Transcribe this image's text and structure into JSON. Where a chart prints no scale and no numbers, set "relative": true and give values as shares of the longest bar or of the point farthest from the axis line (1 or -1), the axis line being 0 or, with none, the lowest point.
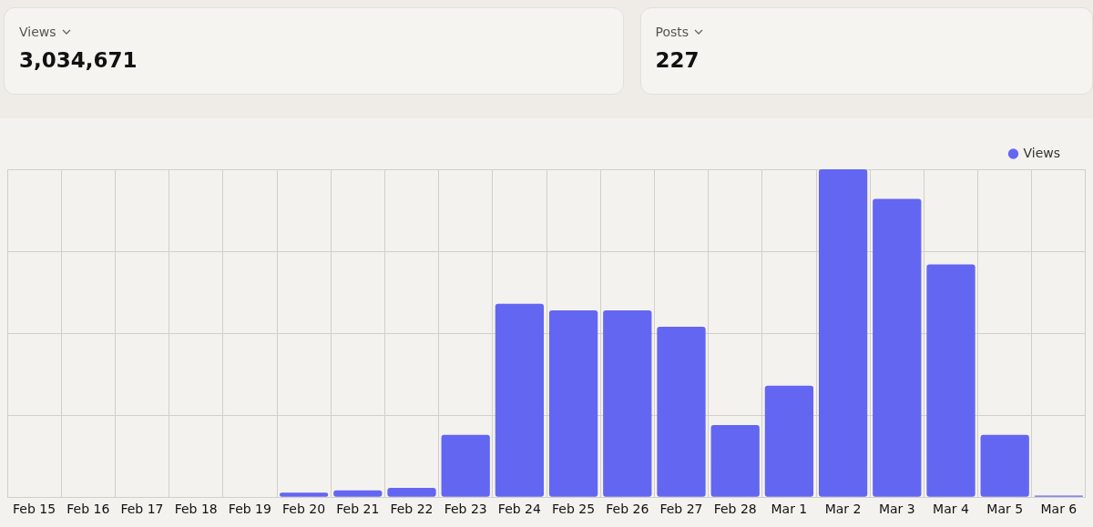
{
  "chart_data": [
    {
      "type": "other",
      "annotations": [
        "Views",
        "3,034,671"
      ]
    },
    {
      "type": "other",
      "annotations": [
        "Posts",
        "227"
      ]
    },
    {
      "type": "bar",
      "relative": true,
      "grid": true,
      "legend": "top right",
      "categories": [
        "Feb 15",
        "Feb 16",
        "Feb 17",
        "Feb 18",
        "Feb 19",
        "Feb 20",
        "Feb 21",
        "Feb 22",
        "Feb 23",
        "Feb 24",
        "Feb 25",
        "Feb 26",
        "Feb 27",
        "Feb 28",
        "Mar 1",
        "Mar 2",
        "Mar 3",
        "Mar 4",
        "Mar 5",
        "Mar 6"
      ],
      "series": [
        {
          "name": "Views",
          "color": "#6366f1",
          "values": [
            0,
            0,
            0,
            0,
            0,
            0.014,
            0.021,
            0.028,
            0.19,
            0.59,
            0.57,
            0.57,
            0.52,
            0.22,
            0.34,
            1,
            0.91,
            0.71,
            0.19,
            0.005
          ]
        }
      ]
    }
  ]
}
